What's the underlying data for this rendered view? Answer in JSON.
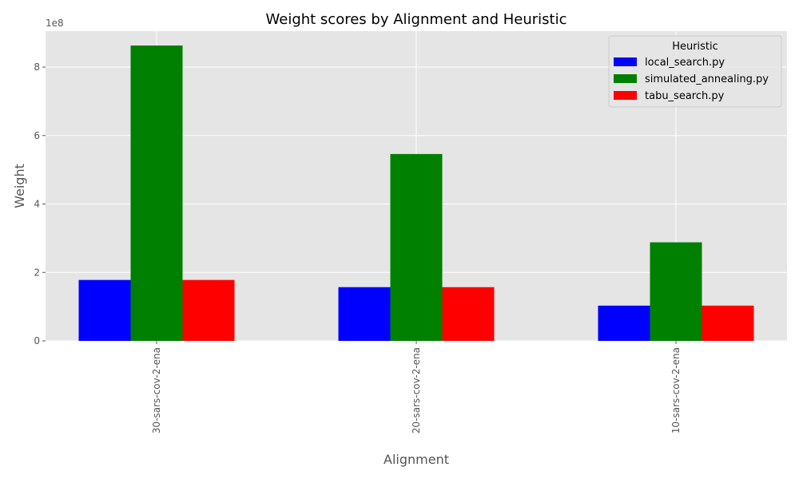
{
  "chart_data": {
    "type": "bar",
    "title": "Weight scores by Alignment and Heuristic",
    "xlabel": "Alignment",
    "ylabel": "Weight",
    "y_offset_label": "1e8",
    "categories": [
      "30-sars-cov-2-ena",
      "20-sars-cov-2-ena",
      "10-sars-cov-2-ena"
    ],
    "ytick_labels": [
      "0",
      "2",
      "4",
      "6",
      "8"
    ],
    "ytick_values": [
      0,
      200000000,
      400000000,
      600000000,
      800000000
    ],
    "ylim": [
      0,
      905000000
    ],
    "grid": true,
    "legend": {
      "title": "Heuristic",
      "position": "top-right"
    },
    "series": [
      {
        "name": "local_search.py",
        "color": "#0000ff",
        "values": [
          178000000,
          157000000,
          103000000
        ]
      },
      {
        "name": "simulated_annealing.py",
        "color": "#008000",
        "values": [
          863000000,
          546000000,
          288000000
        ]
      },
      {
        "name": "tabu_search.py",
        "color": "#ff0000",
        "values": [
          178000000,
          157000000,
          103000000
        ]
      }
    ],
    "colors": {
      "plot_background": "#e5e5e5",
      "grid": "#ffffff",
      "tick_text": "#555555"
    }
  }
}
